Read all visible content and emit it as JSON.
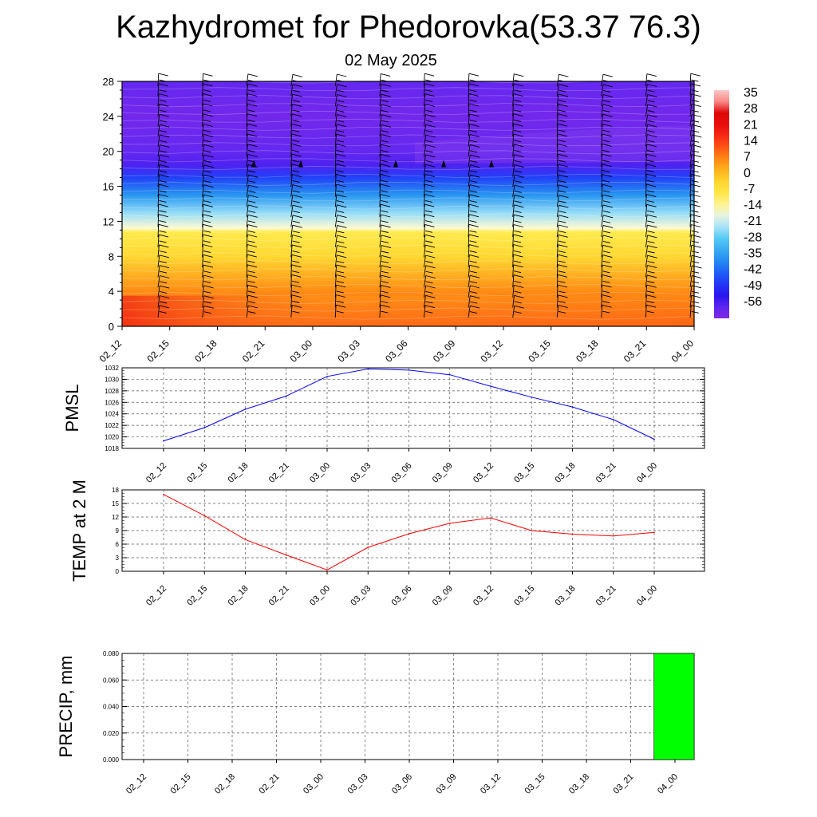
{
  "title": "Kazhydromet for Phedorovka(53.37 76.3)",
  "subtitle": "02 May 2025",
  "x_labels": [
    "02_12",
    "02_15",
    "02_18",
    "02_21",
    "03_00",
    "03_03",
    "03_06",
    "03_09",
    "03_12",
    "03_15",
    "03_18",
    "03_21",
    "04_00"
  ],
  "chart_data": [
    {
      "type": "heatmap",
      "description_key": "cross-section",
      "title": "",
      "xlabel": "",
      "ylabel": "",
      "x": [
        "02_12",
        "02_15",
        "02_18",
        "02_21",
        "03_00",
        "03_03",
        "03_06",
        "03_09",
        "03_12",
        "03_15",
        "03_18",
        "03_21",
        "04_00"
      ],
      "y_ticks": [
        0,
        4,
        8,
        12,
        16,
        20,
        24,
        28
      ],
      "ylim": [
        0,
        28
      ],
      "colorbar_labels": [
        "35",
        "28",
        "21",
        "14",
        "7",
        "0",
        "-7",
        "-14",
        "-21",
        "-28",
        "-35",
        "-42",
        "-49",
        "-56"
      ],
      "colorbar_range": [
        -60,
        38
      ],
      "overlay": "wind barbs",
      "temperature_profile": [
        {
          "height": 0,
          "value": 14
        },
        {
          "height": 4,
          "value": 8
        },
        {
          "height": 8,
          "value": -2
        },
        {
          "height": 10.8,
          "value": -8
        },
        {
          "height": 11.2,
          "value": -14
        },
        {
          "height": 13,
          "value": -22
        },
        {
          "height": 15,
          "value": -34
        },
        {
          "height": 17,
          "value": -44
        },
        {
          "height": 18.5,
          "value": -54
        },
        {
          "height": 20,
          "value": -56
        },
        {
          "height": 24,
          "value": -58
        },
        {
          "height": 28,
          "value": -56
        }
      ]
    },
    {
      "type": "line",
      "ylabel": "PMSL",
      "x": [
        "02_12",
        "02_15",
        "02_18",
        "02_21",
        "03_00",
        "03_03",
        "03_06",
        "03_09",
        "03_12",
        "03_15",
        "03_18",
        "03_21",
        "04_00"
      ],
      "series": [
        {
          "values": [
            1019.3,
            1021.6,
            1024.8,
            1027.1,
            1030.5,
            1031.8,
            1031.6,
            1030.8,
            1028.8,
            1026.9,
            1025.2,
            1023.0,
            1019.6
          ],
          "color": "#0000ff"
        }
      ],
      "y_ticks": [
        1018,
        1020,
        1022,
        1024,
        1026,
        1028,
        1030,
        1032
      ],
      "ylim": [
        1018,
        1032
      ]
    },
    {
      "type": "line",
      "ylabel": "TEMP at 2 M",
      "x": [
        "02_12",
        "02_15",
        "02_18",
        "02_21",
        "03_00",
        "03_03",
        "03_06",
        "03_09",
        "03_12",
        "03_15",
        "03_18",
        "03_21",
        "04_00"
      ],
      "series": [
        {
          "values": [
            17.0,
            12.3,
            7.0,
            3.6,
            0.3,
            5.3,
            8.3,
            10.6,
            11.8,
            9.0,
            8.2,
            7.8,
            8.6
          ],
          "color": "#ff0000"
        }
      ],
      "y_ticks": [
        0,
        3,
        6,
        9,
        12,
        15,
        18
      ],
      "ylim": [
        0,
        18
      ]
    },
    {
      "type": "bar",
      "ylabel": "PRECIP, mm",
      "categories": [
        "02_12",
        "02_15",
        "02_18",
        "02_21",
        "03_00",
        "03_03",
        "03_06",
        "03_09",
        "03_12",
        "03_15",
        "03_18",
        "03_21",
        "04_00"
      ],
      "values": [
        0,
        0,
        0,
        0,
        0,
        0,
        0,
        0,
        0,
        0,
        0,
        0,
        0.08
      ],
      "color": "#00ff00",
      "y_ticks": [
        "0.000",
        "0.020",
        "0.040",
        "0.060",
        "0.080"
      ],
      "ylim": [
        0,
        0.08
      ]
    }
  ]
}
